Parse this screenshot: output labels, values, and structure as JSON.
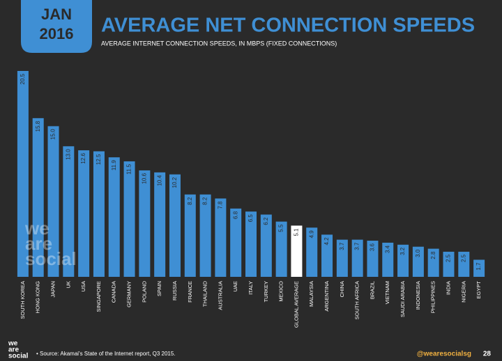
{
  "header": {
    "month": "JAN",
    "year": "2016"
  },
  "chart_data": {
    "type": "bar",
    "title": "AVERAGE NET CONNECTION SPEEDS",
    "subtitle": "AVERAGE INTERNET CONNECTION SPEEDS, IN MBPS (FIXED CONNECTIONS)",
    "categories": [
      "SOUTH KOREA",
      "HONG KONG",
      "JAPAN",
      "UK",
      "USA",
      "SINGAPORE",
      "CANADA",
      "GERMANY",
      "POLAND",
      "SPAIN",
      "RUSSIA",
      "FRANCE",
      "THAILAND",
      "AUSTRALIA",
      "UAE",
      "ITALY",
      "TURKEY",
      "MEXICO",
      "GLOBAL AVERAGE",
      "MALAYSIA",
      "ARGENTINA",
      "CHINA",
      "SOUTH AFRICA",
      "BRAZIL",
      "VIETNAM",
      "SAUDI ARABIA",
      "INDONESIA",
      "PHILIPPINES",
      "INDIA",
      "NIGERIA",
      "EGYPT"
    ],
    "values": [
      20.5,
      15.8,
      15.0,
      13.0,
      12.6,
      12.5,
      11.9,
      11.5,
      10.6,
      10.4,
      10.2,
      8.2,
      8.2,
      7.8,
      6.8,
      6.5,
      6.2,
      5.5,
      5.1,
      4.9,
      4.2,
      3.7,
      3.7,
      3.6,
      3.4,
      3.2,
      3.0,
      2.8,
      2.5,
      2.5,
      1.7
    ],
    "value_labels": [
      "20.5",
      "15.8",
      "15.0",
      "13.0",
      "12.6",
      "12.5",
      "11.9",
      "11.5",
      "10.6",
      "10.4",
      "10.2",
      "8.2",
      "8.2",
      "7.8",
      "6.8",
      "6.5",
      "6.2",
      "5.5",
      "5.1",
      "4.9",
      "4.2",
      "3.7",
      "3.7",
      "3.6",
      "3.4",
      "3.2",
      "3.0",
      "2.8",
      "2.5",
      "2.5",
      "1.7"
    ],
    "colors": [
      "#3f8fd4",
      "#3f8fd4",
      "#3f8fd4",
      "#3f8fd4",
      "#3f8fd4",
      "#3f8fd4",
      "#3f8fd4",
      "#3f8fd4",
      "#3f8fd4",
      "#3f8fd4",
      "#3f8fd4",
      "#3f8fd4",
      "#3f8fd4",
      "#3f8fd4",
      "#3f8fd4",
      "#3f8fd4",
      "#3f8fd4",
      "#3f8fd4",
      "#ffffff",
      "#3f8fd4",
      "#3f8fd4",
      "#3f8fd4",
      "#3f8fd4",
      "#3f8fd4",
      "#3f8fd4",
      "#3f8fd4",
      "#3f8fd4",
      "#3f8fd4",
      "#3f8fd4",
      "#3f8fd4",
      "#3f8fd4"
    ],
    "ylim": [
      0,
      20.5
    ]
  },
  "watermark": [
    "we",
    "are",
    "social"
  ],
  "footer": {
    "logo": [
      "we",
      "are",
      "social"
    ],
    "source": "• Source: Akamai's State of the Internet report, Q3 2015.",
    "handle": "@wearesocialsg",
    "page": "28"
  }
}
